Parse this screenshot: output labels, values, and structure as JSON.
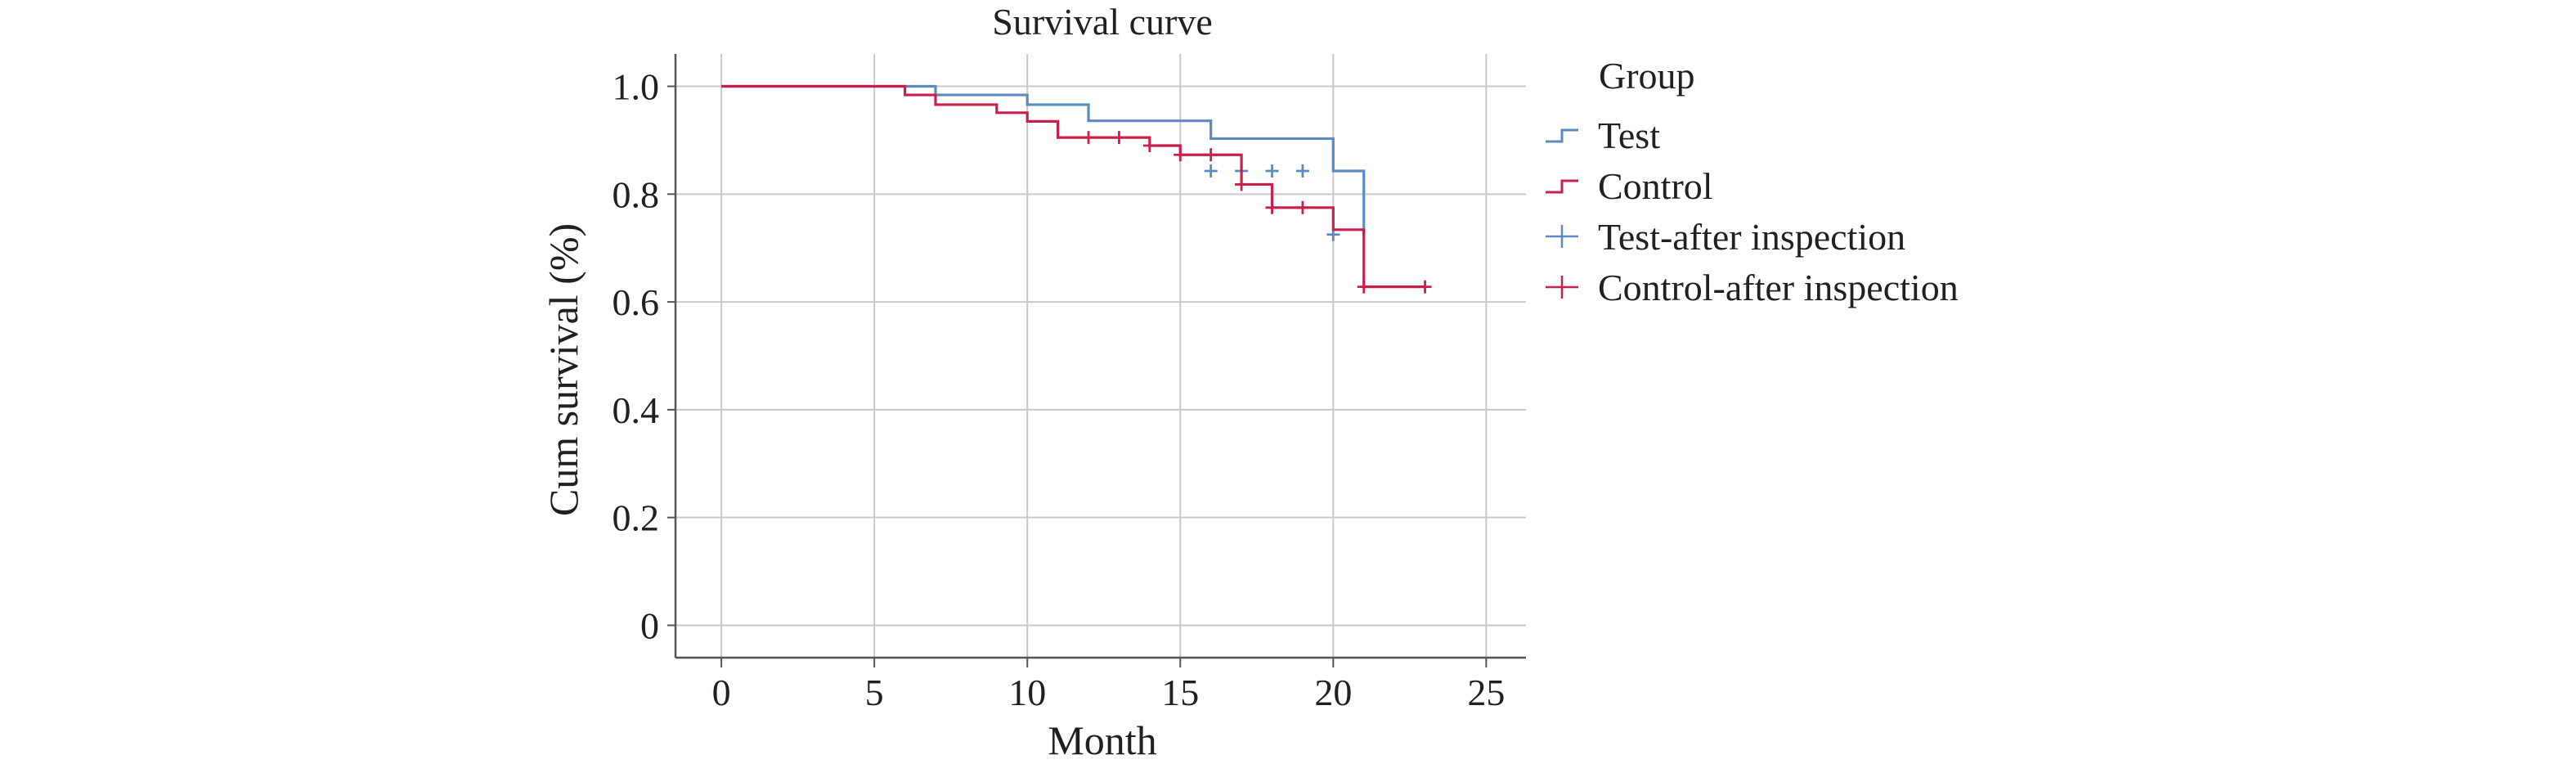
{
  "chart_data": {
    "type": "line",
    "title": "Survival curve",
    "xlabel": "Month",
    "ylabel": "Cum survival (%)",
    "xlim": [
      -1.5,
      26.3
    ],
    "ylim": [
      -0.06,
      1.06
    ],
    "x_ticks": [
      0,
      5,
      10,
      15,
      20,
      25
    ],
    "x_tick_labels": [
      "0",
      "5",
      "10",
      "15",
      "20",
      "25"
    ],
    "y_ticks": [
      0,
      0.2,
      0.4,
      0.6,
      0.8,
      1.0
    ],
    "y_tick_labels": [
      "0",
      "0.2",
      "0.4",
      "0.6",
      "0.8",
      "1.0"
    ],
    "grid": true,
    "legend": {
      "title": "Group",
      "position": "right",
      "entries": [
        {
          "label": "Test",
          "kind": "step",
          "color": "#5b8bbf"
        },
        {
          "label": "Control",
          "kind": "step",
          "color": "#c8204c"
        },
        {
          "label": "Test-after inspection",
          "kind": "censor",
          "color": "#5b8bbf"
        },
        {
          "label": "Control-after inspection",
          "kind": "censor",
          "color": "#c8204c"
        }
      ]
    },
    "series": [
      {
        "name": "Test",
        "color": "#5b8bbf",
        "steps": [
          [
            0,
            1.0
          ],
          [
            7,
            0.984
          ],
          [
            10,
            0.966
          ],
          [
            12,
            0.936
          ],
          [
            16,
            0.903
          ],
          [
            20,
            0.843
          ],
          [
            21,
            0.725
          ]
        ],
        "end": 21,
        "censored": [
          [
            16,
            0.843
          ],
          [
            17,
            0.843
          ],
          [
            18,
            0.843
          ],
          [
            19,
            0.843
          ],
          [
            20,
            0.725
          ]
        ]
      },
      {
        "name": "Control",
        "color": "#c8204c",
        "steps": [
          [
            0,
            1.0
          ],
          [
            6,
            0.984
          ],
          [
            7,
            0.966
          ],
          [
            9,
            0.951
          ],
          [
            10,
            0.935
          ],
          [
            11,
            0.905
          ],
          [
            14,
            0.89
          ],
          [
            15,
            0.873
          ],
          [
            17,
            0.818
          ],
          [
            18,
            0.775
          ],
          [
            20,
            0.734
          ],
          [
            21,
            0.628
          ]
        ],
        "end": 23,
        "censored": [
          [
            12,
            0.905
          ],
          [
            13,
            0.905
          ],
          [
            14,
            0.89
          ],
          [
            15,
            0.873
          ],
          [
            16,
            0.873
          ],
          [
            17,
            0.818
          ],
          [
            18,
            0.775
          ],
          [
            19,
            0.775
          ],
          [
            21,
            0.628
          ],
          [
            23,
            0.628
          ]
        ]
      }
    ]
  }
}
